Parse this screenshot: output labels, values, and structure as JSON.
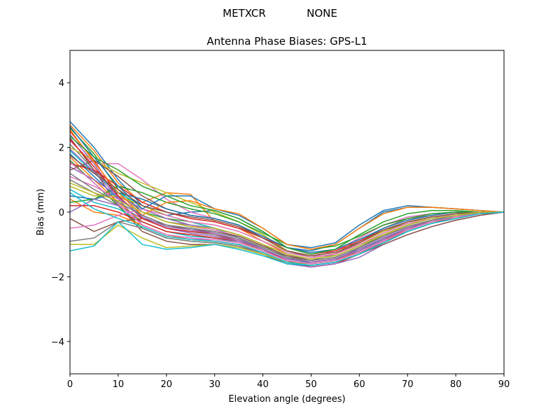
{
  "chart_data": {
    "type": "line",
    "suptitle_left": "METXCR",
    "suptitle_right": "NONE",
    "title": "Antenna Phase Biases: GPS-L1",
    "xlabel": "Elevation angle (degrees)",
    "ylabel": "Bias (mm)",
    "xlim": [
      0,
      90
    ],
    "ylim": [
      -5,
      5
    ],
    "xticks": [
      0,
      10,
      20,
      30,
      40,
      50,
      60,
      70,
      80,
      90
    ],
    "yticks": [
      -4,
      -2,
      0,
      2,
      4
    ],
    "xtick_labels": [
      "0",
      "10",
      "20",
      "30",
      "40",
      "50",
      "60",
      "70",
      "80",
      "90"
    ],
    "ytick_labels": [
      "−4",
      "−2",
      "0",
      "2",
      "4"
    ],
    "grid": false,
    "legend": "none",
    "x": [
      0,
      5,
      10,
      15,
      20,
      25,
      30,
      35,
      40,
      45,
      50,
      55,
      60,
      65,
      70,
      75,
      80,
      85,
      90
    ],
    "colors": [
      "#1f77b4",
      "#ff7f0e",
      "#2ca02c",
      "#d62728",
      "#9467bd",
      "#8c564b",
      "#e377c2",
      "#7f7f7f",
      "#bcbd22",
      "#17becf"
    ],
    "series": [
      {
        "values": [
          2.8,
          2.0,
          1.0,
          0.2,
          -0.1,
          0.0,
          0.05,
          -0.2,
          -0.6,
          -1.1,
          -1.2,
          -1.0,
          -0.5,
          0.0,
          0.15,
          0.15,
          0.1,
          0.05,
          0.0
        ]
      },
      {
        "values": [
          2.7,
          1.9,
          0.9,
          0.3,
          0.6,
          0.55,
          -0.3,
          -0.5,
          -0.9,
          -1.3,
          -1.5,
          -1.3,
          -0.8,
          -0.4,
          -0.2,
          -0.1,
          0.0,
          0.0,
          0.0
        ]
      },
      {
        "values": [
          2.6,
          1.8,
          0.7,
          0.0,
          -0.2,
          -0.3,
          -0.5,
          -0.7,
          -1.0,
          -1.4,
          -1.6,
          -1.5,
          -1.1,
          -0.7,
          -0.4,
          -0.2,
          -0.05,
          0.0,
          0.0
        ]
      },
      {
        "values": [
          2.5,
          1.6,
          0.5,
          -0.2,
          -0.5,
          -0.6,
          -0.7,
          -0.9,
          -1.2,
          -1.5,
          -1.7,
          -1.6,
          -1.3,
          -0.9,
          -0.6,
          -0.35,
          -0.15,
          -0.05,
          0.0
        ]
      },
      {
        "values": [
          2.4,
          1.5,
          0.4,
          -0.4,
          -0.7,
          -0.8,
          -0.9,
          -1.0,
          -1.3,
          -1.6,
          -1.7,
          -1.6,
          -1.4,
          -1.0,
          -0.7,
          -0.45,
          -0.25,
          -0.1,
          0.0
        ]
      },
      {
        "values": [
          2.3,
          1.3,
          0.2,
          -0.6,
          -0.9,
          -1.0,
          -1.0,
          -1.1,
          -1.3,
          -1.6,
          -1.65,
          -1.55,
          -1.3,
          -1.0,
          -0.7,
          -0.45,
          -0.25,
          -0.1,
          0.0
        ]
      },
      {
        "values": [
          2.2,
          1.5,
          1.5,
          1.0,
          0.4,
          0.0,
          -0.2,
          -0.4,
          -0.8,
          -1.2,
          -1.4,
          -1.2,
          -0.8,
          -0.4,
          -0.15,
          -0.05,
          0.0,
          0.0,
          0.0
        ]
      },
      {
        "values": [
          2.1,
          1.3,
          0.6,
          0.0,
          -0.3,
          -0.4,
          -0.5,
          -0.7,
          -1.0,
          -1.3,
          -1.5,
          -1.3,
          -0.9,
          -0.5,
          -0.2,
          -0.1,
          0.0,
          0.0,
          0.0
        ]
      },
      {
        "values": [
          2.0,
          1.6,
          1.2,
          0.9,
          0.6,
          0.3,
          0.0,
          -0.3,
          -0.7,
          -1.2,
          -1.4,
          -1.3,
          -1.0,
          -0.7,
          -0.45,
          -0.25,
          -0.1,
          -0.05,
          0.0
        ]
      },
      {
        "values": [
          1.9,
          1.2,
          0.6,
          0.2,
          -0.1,
          -0.3,
          -0.5,
          -0.8,
          -1.1,
          -1.4,
          -1.6,
          -1.5,
          -1.2,
          -0.8,
          -0.5,
          -0.3,
          -0.1,
          -0.05,
          0.0
        ]
      },
      {
        "values": [
          1.8,
          1.1,
          0.4,
          -0.1,
          -0.4,
          -0.5,
          -0.6,
          -0.8,
          -1.1,
          -1.4,
          -1.5,
          -1.4,
          -1.1,
          -0.75,
          -0.45,
          -0.25,
          -0.1,
          0.0,
          0.0
        ]
      },
      {
        "values": [
          1.7,
          1.0,
          0.3,
          -0.3,
          -0.6,
          -0.7,
          -0.8,
          -0.9,
          -1.2,
          -1.5,
          -1.6,
          -1.5,
          -1.2,
          -0.85,
          -0.55,
          -0.3,
          -0.15,
          -0.05,
          0.0
        ]
      },
      {
        "values": [
          1.6,
          0.9,
          0.2,
          -0.5,
          -0.8,
          -0.9,
          -0.95,
          -1.05,
          -1.3,
          -1.55,
          -1.65,
          -1.55,
          -1.3,
          -0.95,
          -0.6,
          -0.35,
          -0.2,
          -0.05,
          0.0
        ]
      },
      {
        "values": [
          1.5,
          1.3,
          0.8,
          0.3,
          0.0,
          -0.2,
          -0.3,
          -0.5,
          -0.8,
          -1.1,
          -1.3,
          -1.2,
          -0.9,
          -0.55,
          -0.3,
          -0.15,
          -0.05,
          0.0,
          0.0
        ]
      },
      {
        "values": [
          1.4,
          1.0,
          0.5,
          0.1,
          -0.2,
          -0.4,
          -0.5,
          -0.7,
          -1.0,
          -1.3,
          -1.45,
          -1.35,
          -1.05,
          -0.7,
          -0.4,
          -0.2,
          -0.1,
          0.0,
          0.0
        ]
      },
      {
        "values": [
          1.3,
          1.6,
          1.1,
          0.5,
          0.1,
          -0.1,
          -0.2,
          -0.4,
          -0.8,
          -1.2,
          -1.4,
          -1.3,
          -0.95,
          -0.6,
          -0.3,
          -0.15,
          -0.05,
          0.0,
          0.0
        ]
      },
      {
        "values": [
          1.1,
          0.8,
          0.4,
          0.0,
          -0.3,
          -0.45,
          -0.55,
          -0.75,
          -1.05,
          -1.35,
          -1.5,
          -1.4,
          -1.1,
          -0.75,
          -0.45,
          -0.25,
          -0.1,
          0.0,
          0.0
        ]
      },
      {
        "values": [
          1.0,
          0.6,
          0.2,
          -0.2,
          -0.5,
          -0.6,
          -0.7,
          -0.85,
          -1.1,
          -1.4,
          -1.55,
          -1.45,
          -1.15,
          -0.8,
          -0.5,
          -0.3,
          -0.15,
          -0.05,
          0.0
        ]
      },
      {
        "values": [
          0.8,
          0.5,
          0.5,
          0.2,
          -0.1,
          -0.3,
          -0.4,
          -0.6,
          -0.9,
          -1.2,
          -1.35,
          -1.25,
          -0.95,
          -0.6,
          -0.35,
          -0.15,
          -0.05,
          0.0,
          0.0
        ]
      },
      {
        "values": [
          0.7,
          0.3,
          0.1,
          -0.3,
          -0.6,
          -0.75,
          -0.8,
          -0.95,
          -1.2,
          -1.5,
          -1.6,
          -1.5,
          -1.25,
          -0.9,
          -0.55,
          -0.3,
          -0.15,
          -0.05,
          0.0
        ]
      },
      {
        "values": [
          0.5,
          0.4,
          0.6,
          0.4,
          0.1,
          -0.1,
          -0.2,
          -0.4,
          -0.75,
          -1.1,
          -1.25,
          -1.15,
          -0.85,
          -0.5,
          -0.25,
          -0.1,
          0.0,
          0.0,
          0.0
        ]
      },
      {
        "values": [
          0.4,
          0.0,
          -0.1,
          -0.4,
          -0.7,
          -0.85,
          -0.9,
          -1.0,
          -1.25,
          -1.55,
          -1.65,
          -1.55,
          -1.3,
          -0.95,
          -0.6,
          -0.35,
          -0.2,
          -0.05,
          0.0
        ]
      },
      {
        "values": [
          0.3,
          0.4,
          0.8,
          0.6,
          0.3,
          0.1,
          -0.05,
          -0.3,
          -0.65,
          -1.0,
          -1.15,
          -1.05,
          -0.75,
          -0.4,
          -0.2,
          -0.05,
          0.0,
          0.0,
          0.0
        ]
      },
      {
        "values": [
          0.2,
          0.2,
          0.0,
          -0.3,
          -0.6,
          -0.7,
          -0.8,
          -0.9,
          -1.15,
          -1.45,
          -1.55,
          -1.45,
          -1.2,
          -0.85,
          -0.5,
          -0.3,
          -0.15,
          -0.05,
          0.0
        ]
      },
      {
        "values": [
          0.0,
          0.4,
          0.2,
          -0.2,
          -0.5,
          -0.65,
          -0.75,
          -0.9,
          -1.15,
          -1.45,
          -1.55,
          -1.45,
          -1.2,
          -0.85,
          -0.5,
          -0.3,
          -0.15,
          -0.05,
          0.0
        ]
      },
      {
        "values": [
          -0.2,
          -0.6,
          -0.3,
          -0.2,
          -0.4,
          -0.55,
          -0.6,
          -0.75,
          -1.05,
          -1.35,
          -1.5,
          -1.4,
          -1.1,
          -0.75,
          -0.45,
          -0.25,
          -0.1,
          0.0,
          0.0
        ]
      },
      {
        "values": [
          -0.5,
          -0.4,
          -0.1,
          0.1,
          -0.1,
          -0.3,
          -0.4,
          -0.6,
          -0.9,
          -1.25,
          -1.4,
          -1.3,
          -1.0,
          -0.65,
          -0.35,
          -0.2,
          -0.05,
          0.0,
          0.0
        ]
      },
      {
        "values": [
          -0.9,
          -0.8,
          -0.3,
          -0.5,
          -0.8,
          -0.9,
          -0.95,
          -1.05,
          -1.3,
          -1.55,
          -1.65,
          -1.55,
          -1.3,
          -0.95,
          -0.6,
          -0.35,
          -0.2,
          -0.05,
          0.0
        ]
      },
      {
        "values": [
          -1.0,
          -1.0,
          -0.4,
          -0.8,
          -1.1,
          -1.05,
          -1.0,
          -1.1,
          -1.3,
          -1.55,
          -1.6,
          -1.5,
          -1.25,
          -0.9,
          -0.55,
          -0.3,
          -0.15,
          -0.05,
          0.0
        ]
      },
      {
        "values": [
          -1.2,
          -1.05,
          -0.3,
          -1.0,
          -1.15,
          -1.1,
          -1.0,
          -1.15,
          -1.35,
          -1.6,
          -1.65,
          -1.55,
          -1.3,
          -0.95,
          -0.6,
          -0.35,
          -0.2,
          -0.05,
          0.0
        ]
      },
      {
        "values": [
          2.65,
          1.7,
          0.8,
          0.1,
          0.5,
          0.5,
          0.1,
          -0.1,
          -0.5,
          -1.0,
          -1.1,
          -0.95,
          -0.4,
          0.05,
          0.2,
          0.15,
          0.1,
          0.05,
          0.0
        ]
      },
      {
        "values": [
          2.55,
          1.55,
          0.6,
          -0.1,
          0.3,
          0.35,
          0.1,
          -0.05,
          -0.5,
          -1.0,
          -1.15,
          -1.0,
          -0.5,
          -0.05,
          0.15,
          0.15,
          0.1,
          0.05,
          0.0
        ]
      },
      {
        "values": [
          2.35,
          1.7,
          1.3,
          0.8,
          0.5,
          0.2,
          0.05,
          -0.2,
          -0.6,
          -1.1,
          -1.3,
          -1.15,
          -0.7,
          -0.3,
          -0.05,
          0.05,
          0.05,
          0.0,
          0.0
        ]
      },
      {
        "values": [
          2.25,
          1.4,
          0.5,
          -0.2,
          -0.5,
          -0.6,
          -0.65,
          -0.85,
          -1.15,
          -1.5,
          -1.6,
          -1.5,
          -1.25,
          -0.9,
          -0.55,
          -0.3,
          -0.15,
          -0.05,
          0.0
        ]
      },
      {
        "values": [
          1.95,
          1.25,
          0.45,
          -0.15,
          -0.45,
          -0.55,
          -0.65,
          -0.85,
          -1.15,
          -1.45,
          -1.55,
          -1.45,
          -1.15,
          -0.8,
          -0.5,
          -0.25,
          -0.1,
          0.0,
          0.0
        ]
      },
      {
        "values": [
          1.75,
          1.2,
          0.7,
          0.2,
          0.0,
          -0.15,
          -0.25,
          -0.45,
          -0.8,
          -1.2,
          -1.35,
          -1.25,
          -0.95,
          -0.55,
          -0.3,
          -0.15,
          -0.05,
          0.0,
          0.0
        ]
      },
      {
        "values": [
          1.55,
          0.9,
          0.25,
          -0.4,
          -0.7,
          -0.8,
          -0.85,
          -0.95,
          -1.2,
          -1.5,
          -1.6,
          -1.5,
          -1.25,
          -0.9,
          -0.55,
          -0.3,
          -0.15,
          -0.05,
          0.0
        ]
      },
      {
        "values": [
          1.2,
          0.7,
          0.3,
          -0.1,
          -0.4,
          -0.5,
          -0.6,
          -0.8,
          -1.1,
          -1.4,
          -1.5,
          -1.4,
          -1.1,
          -0.75,
          -0.45,
          -0.25,
          -0.1,
          0.0,
          0.0
        ]
      },
      {
        "values": [
          0.9,
          0.6,
          0.35,
          0.0,
          -0.3,
          -0.45,
          -0.5,
          -0.7,
          -1.0,
          -1.3,
          -1.45,
          -1.35,
          -1.05,
          -0.7,
          -0.4,
          -0.2,
          -0.1,
          0.0,
          0.0
        ]
      },
      {
        "values": [
          0.6,
          0.1,
          -0.2,
          -0.45,
          -0.75,
          -0.85,
          -0.9,
          -1.0,
          -1.25,
          -1.55,
          -1.65,
          -1.55,
          -1.3,
          -0.95,
          -0.6,
          -0.35,
          -0.2,
          -0.05,
          0.0
        ]
      }
    ]
  }
}
